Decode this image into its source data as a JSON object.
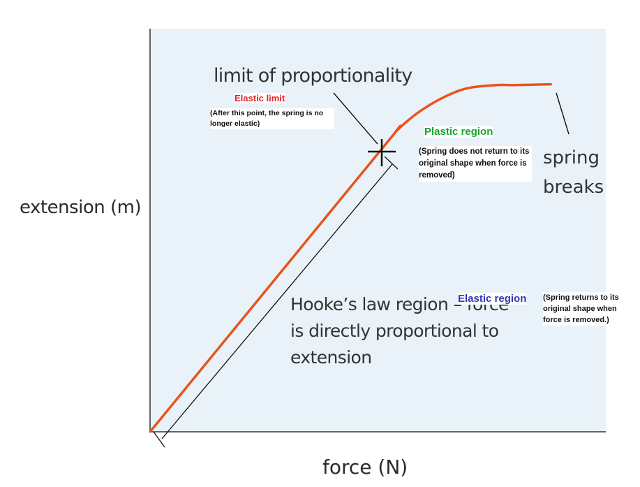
{
  "chart_data": {
    "type": "line",
    "xlabel": "force (N)",
    "ylabel": "extension (m)",
    "series": [
      {
        "x": [
          0,
          0.5,
          0.54,
          0.58,
          0.62,
          0.66,
          0.7,
          0.76,
          0.8,
          0.88
        ],
        "y": [
          0,
          0.69,
          0.745,
          0.785,
          0.815,
          0.838,
          0.853,
          0.86,
          0.86,
          0.862
        ]
      }
    ],
    "xlim": [
      0,
      1
    ],
    "ylim": [
      0,
      1
    ],
    "grid": false,
    "annotations": {
      "limit_of_proportionality": "limit of proportionality",
      "elastic_limit_title": "Elastic limit",
      "elastic_limit_note": "(After this point, the spring is no longer elastic)",
      "plastic_region_title": "Plastic region",
      "plastic_region_note": "(Spring does not return to its original shape when force is removed)",
      "spring_breaks": "spring breaks",
      "hookes_law": "Hooke’s law region – force is directly proportional to extension",
      "elastic_region_title": "Elastic region",
      "elastic_region_note": "(Spring returns to its original shape when force is removed.)"
    },
    "colors": {
      "curve": "#e8541c",
      "elastic_limit": "#e8202a",
      "plastic_region": "#1aa32c",
      "elastic_region": "#3535b5",
      "background": "#e9f2f8"
    }
  }
}
